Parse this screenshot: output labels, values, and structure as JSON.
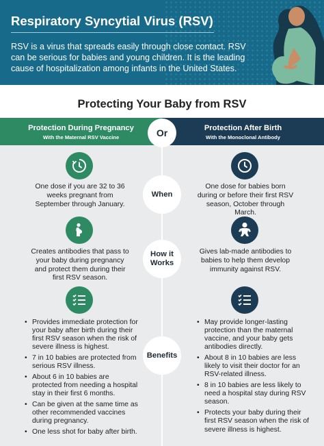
{
  "header": {
    "title": "Respiratory Syncytial Virus (RSV)",
    "intro": "RSV is a virus that spreads easily through close contact. RSV can be serious for babies and young children. It is the leading cause of hospitalization among infants in the United States."
  },
  "subtitle": "Protecting Your Baby from RSV",
  "columns": {
    "left": {
      "title": "Protection During Pregnancy",
      "subtitle": "With the Maternal RSV Vaccine"
    },
    "right": {
      "title": "Protection After Birth",
      "subtitle": "With the Monoclonal Antibody"
    },
    "divider_label": "Or"
  },
  "sections": {
    "when": {
      "label": "When",
      "left_icon": "clock-icon",
      "right_icon": "clock-icon",
      "left_text": "One dose if you are 32 to 36 weeks pregnant from September through January.",
      "right_text": "One dose for babies born during or before their first RSV season, October through March."
    },
    "how": {
      "label_line1": "How it",
      "label_line2": "Works",
      "left_icon": "pregnant-woman-icon",
      "right_icon": "baby-icon",
      "left_text": "Creates antibodies that pass to your baby during pregnancy and protect them during their first RSV season.",
      "right_text": "Gives lab-made antibodies to babies to help them develop immunity against RSV."
    },
    "benefits": {
      "label": "Benefits",
      "left_icon": "checklist-icon",
      "right_icon": "checklist-icon",
      "left_bullets": [
        "Provides immediate protection for your baby after birth during their first RSV season when the risk of severe illness is highest.",
        "7 in 10 babies are protected from serious RSV illness.",
        "About 6 in 10 babies are protected from needing a hospital stay in their first 6 months.",
        "Can be given at the same time as other recommended vaccines during pregnancy.",
        "One less shot for baby after birth."
      ],
      "right_bullets": [
        "May provide longer-lasting protection than the maternal vaccine, and your baby gets antibodies directly.",
        "About 8 in 10 babies are less likely to visit their doctor for an RSV-related illness.",
        "8 in 10 babies are less likely to need a hospital stay during RSV season.",
        "Protects your baby during their first RSV season when the risk of severe illness is highest."
      ]
    }
  },
  "colors": {
    "header_teal": "#176a8a",
    "green": "#2d8a63",
    "navy": "#1c3c55",
    "background": "#e9ebed"
  }
}
